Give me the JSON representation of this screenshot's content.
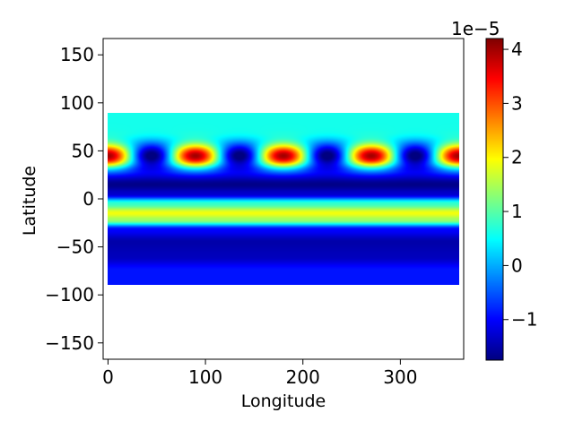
{
  "chart_data": {
    "type": "heatmap",
    "title": "",
    "xlabel": "Longitude",
    "ylabel": "Latitude",
    "xlim": [
      -5,
      365
    ],
    "ylim": [
      -167,
      167
    ],
    "x_ticks": [
      0,
      100,
      200,
      300
    ],
    "x_tick_labels": [
      "0",
      "100",
      "200",
      "300"
    ],
    "y_ticks": [
      150,
      100,
      50,
      0,
      -50,
      -100,
      -150
    ],
    "y_tick_labels": [
      "150",
      "100",
      "50",
      "0",
      "−50",
      "−100",
      "−150"
    ],
    "data_extent": {
      "lon": [
        0,
        360
      ],
      "lat": [
        -90,
        90
      ]
    },
    "field_description": "zonal bands with wavenumber-4 maxima centred at lat ~45 at lon 0, 90, 180, 270, 360",
    "latitude_profile": [
      {
        "lat": 90,
        "value": 6e-06
      },
      {
        "lat": 70,
        "value": 6e-06
      },
      {
        "lat": 55,
        "value": 2e-06
      },
      {
        "lat": 45,
        "value": 2e-06
      },
      {
        "lat": 30,
        "value": -9e-06
      },
      {
        "lat": 15,
        "value": -1.7e-05
      },
      {
        "lat": 5,
        "value": -1.3e-05
      },
      {
        "lat": -5,
        "value": 8e-06
      },
      {
        "lat": -15,
        "value": 1.9e-05
      },
      {
        "lat": -22,
        "value": 1.4e-05
      },
      {
        "lat": -32,
        "value": -1e-05
      },
      {
        "lat": -45,
        "value": -1.5e-05
      },
      {
        "lat": -60,
        "value": -1.4e-05
      },
      {
        "lat": -75,
        "value": -9e-06
      },
      {
        "lat": -90,
        "value": -9e-06
      }
    ],
    "wave": {
      "center_lat": 45,
      "lat_width": 12,
      "peak_amplitude": 4e-05,
      "trough_amplitude": -1.9e-05,
      "period_lon": 90
    },
    "colormap": "jet",
    "colorbar": {
      "vmin": -1.75e-05,
      "vmax": 4.2e-05,
      "ticks": [
        -1,
        0,
        1,
        2,
        3,
        4
      ],
      "tick_labels": [
        "−1",
        "0",
        "1",
        "2",
        "3",
        "4"
      ],
      "offset_text": "1e−5"
    },
    "grid": false
  }
}
